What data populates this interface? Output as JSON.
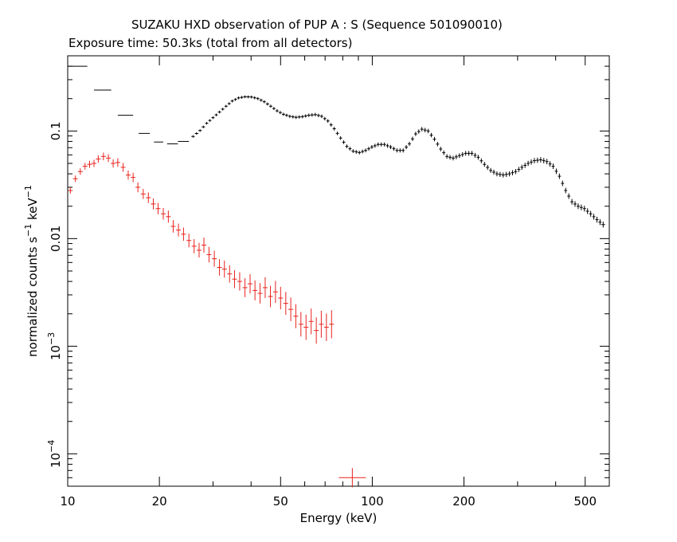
{
  "title": "SUZAKU HXD observation of PUP A : S (Sequence 501090010)",
  "subtitle": "Exposure time: 50.3ks (total from all detectors)",
  "chart_data": {
    "type": "scatter",
    "xlabel": "Energy (keV)",
    "ylabel": "normalized counts s",
    "ylabel_sup1": "−1",
    "ylabel_mid": " keV",
    "ylabel_sup2": "−1",
    "x_scale": "log",
    "y_scale": "log",
    "xlim": [
      10,
      600
    ],
    "ylim": [
      5e-05,
      0.5
    ],
    "grid": false,
    "x_ticks": [
      {
        "value": 10,
        "label": "10"
      },
      {
        "value": 20,
        "label": "20"
      },
      {
        "value": 50,
        "label": "50"
      },
      {
        "value": 100,
        "label": "100"
      },
      {
        "value": 200,
        "label": "200"
      },
      {
        "value": 500,
        "label": "500"
      }
    ],
    "y_ticks": [
      {
        "value": 0.1,
        "base": "0.1",
        "exp": ""
      },
      {
        "value": 0.01,
        "base": "0.01",
        "exp": ""
      },
      {
        "value": 0.001,
        "base": "10",
        "exp": "−3"
      },
      {
        "value": 0.0001,
        "base": "10",
        "exp": "−4"
      }
    ],
    "series": [
      {
        "color": "#000000",
        "segments": [
          {
            "x1": 10.0,
            "x2": 11.6,
            "y": 0.4
          },
          {
            "x1": 12.2,
            "x2": 13.9,
            "y": 0.24
          },
          {
            "x1": 14.6,
            "x2": 16.4,
            "y": 0.14
          },
          {
            "x1": 17.1,
            "x2": 18.6,
            "y": 0.095
          },
          {
            "x1": 19.2,
            "x2": 20.6,
            "y": 0.079
          },
          {
            "x1": 21.2,
            "x2": 23.0,
            "y": 0.076
          },
          {
            "x1": 23.0,
            "x2": 25.0,
            "y": 0.08
          }
        ],
        "points": [
          [
            25.8,
            0.089
          ],
          [
            27.2,
            0.101
          ],
          [
            28.6,
            0.118
          ],
          [
            30.0,
            0.133
          ],
          [
            31.5,
            0.15
          ],
          [
            33.1,
            0.17
          ],
          [
            34.7,
            0.19
          ],
          [
            36.4,
            0.203
          ],
          [
            38.2,
            0.208
          ],
          [
            40.1,
            0.207
          ],
          [
            42.1,
            0.2
          ],
          [
            44.2,
            0.187
          ],
          [
            46.4,
            0.17
          ],
          [
            48.7,
            0.154
          ],
          [
            51.1,
            0.143
          ],
          [
            53.6,
            0.137
          ],
          [
            56.2,
            0.134
          ],
          [
            59.0,
            0.136
          ],
          [
            61.9,
            0.14
          ],
          [
            65.0,
            0.142
          ],
          [
            68.2,
            0.137
          ],
          [
            71.5,
            0.124
          ],
          [
            75.0,
            0.105
          ],
          [
            78.7,
            0.086
          ],
          [
            82.5,
            0.072
          ],
          [
            86.5,
            0.065
          ],
          [
            90.7,
            0.063
          ],
          [
            95.1,
            0.066
          ],
          [
            99.7,
            0.071
          ],
          [
            104.5,
            0.075
          ],
          [
            109.6,
            0.075
          ],
          [
            114.9,
            0.071
          ],
          [
            120.5,
            0.066
          ],
          [
            126.3,
            0.066
          ],
          [
            132.4,
            0.076
          ],
          [
            138.8,
            0.094
          ],
          [
            145.5,
            0.104
          ],
          [
            152.6,
            0.1
          ],
          [
            160.0,
            0.084
          ],
          [
            167.7,
            0.068
          ],
          [
            175.8,
            0.058
          ],
          [
            184.3,
            0.056
          ],
          [
            193.2,
            0.059
          ],
          [
            202.6,
            0.062
          ],
          [
            212.4,
            0.062
          ],
          [
            222.7,
            0.057
          ],
          [
            233.5,
            0.049
          ],
          [
            244.8,
            0.043
          ],
          [
            256.6,
            0.04
          ],
          [
            269.0,
            0.039
          ],
          [
            282.0,
            0.04
          ],
          [
            295.6,
            0.042
          ],
          [
            309.9,
            0.046
          ],
          [
            324.9,
            0.05
          ],
          [
            340.6,
            0.053
          ],
          [
            357.1,
            0.054
          ],
          [
            374.4,
            0.052
          ],
          [
            392.5,
            0.047
          ],
          [
            411.5,
            0.038
          ],
          [
            431.4,
            0.028
          ],
          [
            452.3,
            0.022
          ],
          [
            474.2,
            0.02
          ],
          [
            497.1,
            0.019
          ],
          [
            521.2,
            0.017
          ],
          [
            546.4,
            0.015
          ],
          [
            572.8,
            0.0135
          ],
          [
            590.0,
            0.013
          ]
        ]
      },
      {
        "color": "#e8221c",
        "points": [
          [
            10.2,
            0.028
          ],
          [
            10.6,
            0.036
          ],
          [
            11.0,
            0.042
          ],
          [
            11.4,
            0.047
          ],
          [
            11.8,
            0.049
          ],
          [
            12.2,
            0.05
          ],
          [
            12.6,
            0.055
          ],
          [
            13.1,
            0.058
          ],
          [
            13.6,
            0.056
          ],
          [
            14.1,
            0.05
          ],
          [
            14.6,
            0.051
          ],
          [
            15.2,
            0.046
          ],
          [
            15.8,
            0.039
          ],
          [
            16.4,
            0.037
          ],
          [
            17.0,
            0.03
          ],
          [
            17.7,
            0.026
          ],
          [
            18.4,
            0.024
          ],
          [
            19.1,
            0.021
          ],
          [
            19.8,
            0.019
          ],
          [
            20.6,
            0.017
          ],
          [
            21.4,
            0.016
          ],
          [
            22.2,
            0.013
          ],
          [
            23.1,
            0.012
          ],
          [
            24.0,
            0.011
          ],
          [
            25.0,
            0.0096
          ],
          [
            26.0,
            0.0085
          ],
          [
            27.0,
            0.0078
          ],
          [
            28.0,
            0.0087
          ],
          [
            29.1,
            0.0071
          ],
          [
            30.3,
            0.0065
          ],
          [
            31.5,
            0.0054
          ],
          [
            32.7,
            0.0052
          ],
          [
            34.0,
            0.0047
          ],
          [
            35.3,
            0.0042
          ],
          [
            36.7,
            0.004
          ],
          [
            38.2,
            0.0035
          ],
          [
            39.7,
            0.0038
          ],
          [
            41.2,
            0.0033
          ],
          [
            42.8,
            0.0031
          ],
          [
            44.5,
            0.0035
          ],
          [
            46.3,
            0.0029
          ],
          [
            48.1,
            0.0032
          ],
          [
            50.0,
            0.0028
          ],
          [
            52.0,
            0.0025
          ],
          [
            54.0,
            0.0022
          ],
          [
            56.1,
            0.0019
          ],
          [
            58.3,
            0.0016
          ],
          [
            60.6,
            0.0015
          ],
          [
            63.0,
            0.0017
          ],
          [
            65.5,
            0.0014
          ],
          [
            68.0,
            0.0016
          ],
          [
            70.7,
            0.0015
          ],
          [
            73.5,
            0.0016
          ]
        ],
        "lone_point": [
          86.0,
          6e-05
        ]
      }
    ]
  }
}
